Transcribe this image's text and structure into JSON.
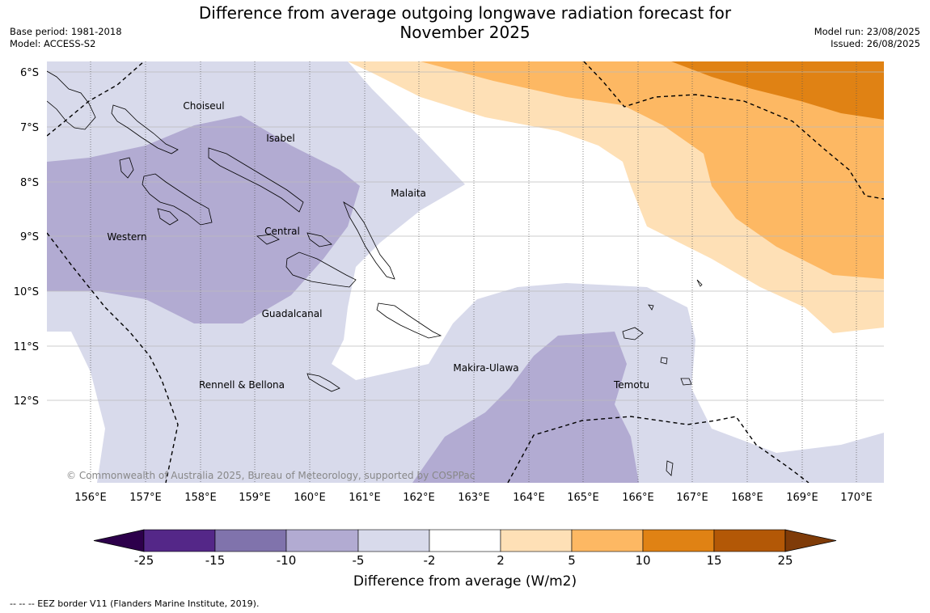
{
  "header": {
    "title_line1": "Difference from average outgoing longwave radiation forecast for",
    "title_line2": "November 2025",
    "base_period": "Base period: 1981-2018",
    "model": "Model: ACCESS-S2",
    "model_run": "Model run: 23/08/2025",
    "issued": "Issued: 26/08/2025"
  },
  "map": {
    "lat_labels": [
      "6°S",
      "7°S",
      "8°S",
      "9°S",
      "10°S",
      "11°S",
      "12°S"
    ],
    "lon_labels": [
      "156°E",
      "157°E",
      "158°E",
      "159°E",
      "160°E",
      "161°E",
      "162°E",
      "163°E",
      "164°E",
      "165°E",
      "166°E",
      "167°E",
      "168°E",
      "169°E",
      "170°E"
    ],
    "province_labels": [
      "Choiseul",
      "Isabel",
      "Malaita",
      "Western",
      "Central",
      "Guadalcanal",
      "Makira-Ulawa",
      "Temotu",
      "Rennell & Bellona"
    ],
    "copyright": "© Commonwealth of Australia 2025, Bureau of Meteorology, supported by COSPPac"
  },
  "colorbar": {
    "ticks": [
      "-25",
      "-15",
      "-10",
      "-5",
      "-2",
      "2",
      "5",
      "10",
      "15",
      "25"
    ],
    "colors": [
      "#2d004b",
      "#542788",
      "#8073ac",
      "#b2abd2",
      "#d8daeb",
      "#ffffff",
      "#fee0b6",
      "#fdb863",
      "#e08214",
      "#b35806",
      "#7f3b08"
    ],
    "label": "Difference from average (W/m2)"
  },
  "footnote": "--  --  -- EEZ border V11 (Flanders Marine Institute, 2019)."
}
